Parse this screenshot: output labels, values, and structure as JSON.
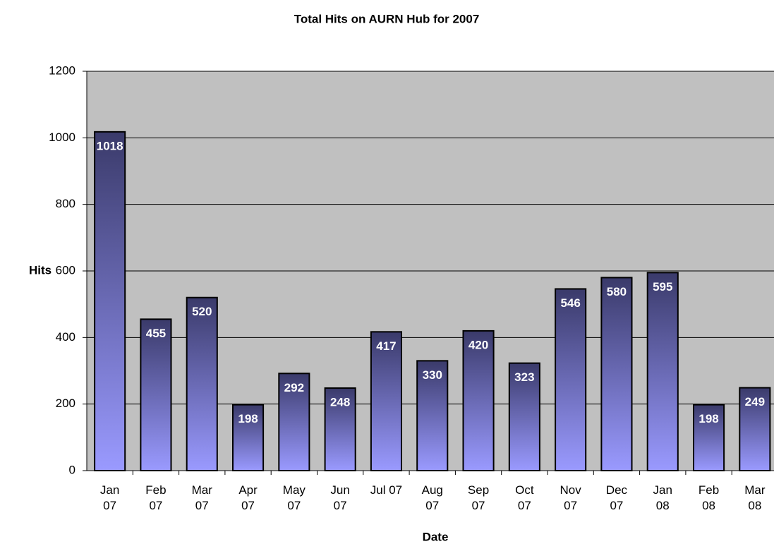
{
  "chart_data": {
    "type": "bar",
    "title": "Total Hits on AURN Hub for 2007",
    "x_label": "Date",
    "y_label": "Hits",
    "categories": [
      "Jan 07",
      "Feb 07",
      "Mar 07",
      "Apr 07",
      "May 07",
      "Jun 07",
      "Jul 07",
      "Aug 07",
      "Sep 07",
      "Oct 07",
      "Nov 07",
      "Dec 07",
      "Jan 08",
      "Feb 08",
      "Mar 08"
    ],
    "values": [
      1018,
      455,
      520,
      198,
      292,
      248,
      417,
      330,
      420,
      323,
      546,
      580,
      595,
      198,
      249
    ],
    "color": "#5a5aa0",
    "ylim": [
      0,
      1200
    ],
    "yticks": [
      0,
      200,
      400,
      600,
      800,
      1000,
      1200
    ],
    "grid": true
  }
}
